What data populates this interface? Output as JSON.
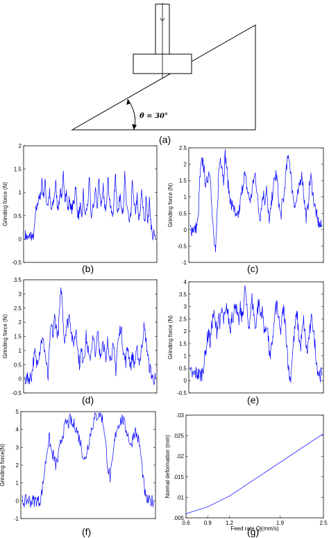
{
  "panel_labels": [
    "(a)",
    "(b)",
    "(c)",
    "(d)",
    "(e)",
    "(f)",
    "(g)"
  ],
  "diagram": {
    "angle_label": "θ = 30°"
  },
  "chart_data": [
    {
      "id": "b",
      "type": "line",
      "ylabel": "Grinding force (N)",
      "ylim": [
        -0.5,
        2
      ],
      "yticks": [
        -0.5,
        0,
        0.5,
        1,
        1.5,
        2
      ],
      "color": "#0000ff",
      "series": [
        {
          "values": [
            0.1,
            0.05,
            0.0,
            0.05,
            0.1,
            0.0,
            0.15,
            0.6,
            0.7,
            0.95,
            0.8,
            1.3,
            0.9,
            1.25,
            0.8,
            0.75,
            1.0,
            0.6,
            0.7,
            0.9,
            1.2,
            0.75,
            0.7,
            1.1,
            0.8,
            1.4,
            0.9,
            1.0,
            0.6,
            0.9,
            0.6,
            0.7,
            0.8,
            1.2,
            0.6,
            0.5,
            0.7,
            0.4,
            1.0,
            0.5,
            0.6,
            0.8,
            1.3,
            0.5,
            0.6,
            0.8,
            1.1,
            0.6,
            1.35,
            0.9,
            0.7,
            1.1,
            0.6,
            0.8,
            1.3,
            0.9,
            0.6,
            0.5,
            0.8,
            1.4,
            0.7,
            0.6,
            1.0,
            0.7,
            0.5,
            1.35,
            0.8,
            0.6,
            0.3,
            0.5,
            1.3,
            0.7,
            0.6,
            0.9,
            0.4,
            0.5,
            1.1,
            0.6,
            0.3,
            1.0,
            0.3,
            0.8,
            0.4,
            0.05,
            0.1,
            0.0
          ]
        }
      ]
    },
    {
      "id": "c",
      "type": "line",
      "ylabel": "Grinding force (N)",
      "ylim": [
        -1,
        2.5
      ],
      "yticks": [
        -1,
        -0.5,
        0,
        0.5,
        1,
        1.5,
        2,
        2.5
      ],
      "color": "#0000ff",
      "series": [
        {
          "values": [
            0.05,
            0.0,
            0.05,
            0.0,
            0.1,
            0.3,
            1.5,
            2.0,
            2.1,
            1.7,
            1.3,
            1.6,
            1.8,
            1.5,
            0.3,
            -0.3,
            -0.8,
            0.5,
            1.8,
            2.2,
            2.0,
            1.5,
            2.3,
            1.9,
            1.3,
            1.0,
            0.7,
            0.8,
            0.5,
            0.3,
            0.4,
            0.6,
            1.0,
            1.3,
            1.7,
            1.5,
            1.2,
            1.0,
            0.9,
            1.2,
            1.5,
            1.7,
            1.2,
            0.6,
            0.4,
            0.8,
            1.1,
            0.9,
            1.3,
            0.5,
            0.3,
            0.7,
            1.2,
            1.5,
            1.7,
            1.4,
            0.7,
            0.4,
            0.8,
            1.0,
            1.6,
            2.0,
            2.3,
            1.9,
            1.3,
            1.0,
            0.7,
            0.9,
            1.1,
            1.4,
            1.7,
            1.4,
            0.8,
            0.4,
            0.6,
            1.3,
            1.6,
            1.2,
            0.8,
            0.6,
            0.3,
            0.2,
            0.1,
            0.1
          ]
        }
      ]
    },
    {
      "id": "d",
      "type": "line",
      "ylabel": "Grinding force (N)",
      "ylim": [
        -0.5,
        3.5
      ],
      "yticks": [
        -0.5,
        0,
        0.5,
        1,
        1.5,
        2,
        2.5,
        3,
        3.5
      ],
      "color": "#0000ff",
      "series": [
        {
          "values": [
            0.0,
            0.0,
            0.0,
            0.05,
            0.1,
            0.6,
            0.9,
            0.5,
            0.8,
            1.0,
            1.4,
            1.3,
            1.0,
            0.5,
            0.0,
            1.3,
            1.9,
            1.5,
            2.2,
            1.8,
            1.5,
            2.5,
            3.2,
            2.2,
            1.3,
            1.9,
            2.0,
            2.3,
            1.7,
            1.2,
            1.4,
            1.8,
            1.0,
            0.5,
            1.0,
            0.7,
            0.9,
            1.5,
            1.1,
            0.6,
            1.0,
            1.4,
            1.2,
            0.8,
            1.7,
            1.1,
            0.8,
            1.4,
            1.1,
            0.5,
            1.3,
            1.0,
            0.7,
            1.1,
            0.9,
            0.3,
            1.2,
            1.5,
            1.9,
            1.3,
            0.8,
            0.6,
            1.2,
            0.8,
            0.4,
            0.9,
            0.5,
            0.7,
            1.0,
            0.6,
            0.8,
            1.3,
            1.8,
            1.5,
            1.0,
            0.5,
            0.3,
            0.05,
            0.0,
            0.0
          ]
        }
      ]
    },
    {
      "id": "e",
      "type": "line",
      "ylabel": "Grinding force (N)",
      "ylim": [
        -0.5,
        4
      ],
      "yticks": [
        -0.5,
        0,
        0.5,
        1,
        1.5,
        2,
        2.5,
        3,
        3.5,
        4
      ],
      "color": "#0000ff",
      "series": [
        {
          "values": [
            0.3,
            0.25,
            0.2,
            0.3,
            0.3,
            0.25,
            0.2,
            0.3,
            0.6,
            1.0,
            1.6,
            2.0,
            1.5,
            2.3,
            2.7,
            2.3,
            2.0,
            2.7,
            2.3,
            2.9,
            2.4,
            2.6,
            3.0,
            2.5,
            2.0,
            2.8,
            2.5,
            3.3,
            2.7,
            2.3,
            2.9,
            2.5,
            3.1,
            3.8,
            2.8,
            2.2,
            2.6,
            3.3,
            2.8,
            2.1,
            2.7,
            3.2,
            2.6,
            2.9,
            2.3,
            1.9,
            2.4,
            1.5,
            0.8,
            1.5,
            2.1,
            2.8,
            3.1,
            2.4,
            1.9,
            2.5,
            2.9,
            2.2,
            1.4,
            0.4,
            0.0,
            0.9,
            1.6,
            2.3,
            2.7,
            1.9,
            1.3,
            1.9,
            2.4,
            1.7,
            1.1,
            1.7,
            2.1,
            2.6,
            1.9,
            1.3,
            0.6,
            0.3,
            0.25,
            0.2
          ]
        }
      ]
    },
    {
      "id": "f",
      "type": "line",
      "ylabel": "Grinding force(N)",
      "ylim": [
        -1,
        5
      ],
      "yticks": [
        -1,
        0,
        1,
        2,
        3,
        4,
        5
      ],
      "color": "#0000ff",
      "series": [
        {
          "values": [
            0.0,
            -0.05,
            0.0,
            0.05,
            -0.05,
            0.0,
            0.0,
            0.05,
            -0.05,
            0.2,
            1.0,
            2.0,
            3.0,
            3.5,
            2.7,
            2.5,
            2.0,
            2.3,
            3.0,
            3.6,
            4.0,
            4.4,
            4.3,
            4.6,
            4.2,
            4.3,
            4.0,
            3.6,
            3.2,
            2.6,
            2.2,
            2.9,
            3.4,
            4.0,
            4.4,
            4.7,
            4.8,
            4.9,
            4.7,
            4.2,
            3.0,
            1.8,
            1.3,
            2.0,
            3.2,
            4.0,
            4.3,
            4.5,
            4.6,
            4.2,
            3.9,
            3.5,
            3.0,
            3.7,
            3.9,
            3.6,
            3.2,
            2.2,
            1.0,
            0.1,
            0.0,
            -0.05,
            0.0,
            0.0
          ]
        }
      ]
    },
    {
      "id": "g",
      "type": "line",
      "xlabel": "Feed rate Qj(mm/s)",
      "ylabel": "Normal deformation (mm)",
      "xlim": [
        0.6,
        2.5
      ],
      "ylim": [
        0.005,
        0.03
      ],
      "xticks": [
        0.6,
        0.9,
        1.2,
        1.9,
        2.5
      ],
      "yticks": [
        0.005,
        0.01,
        0.015,
        0.02,
        0.025,
        0.03
      ],
      "color": "#3030ff",
      "x": [
        0.6,
        0.9,
        1.2,
        2.5
      ],
      "series": [
        {
          "values": [
            0.006,
            0.0077,
            0.0103,
            0.0255
          ]
        }
      ]
    }
  ]
}
